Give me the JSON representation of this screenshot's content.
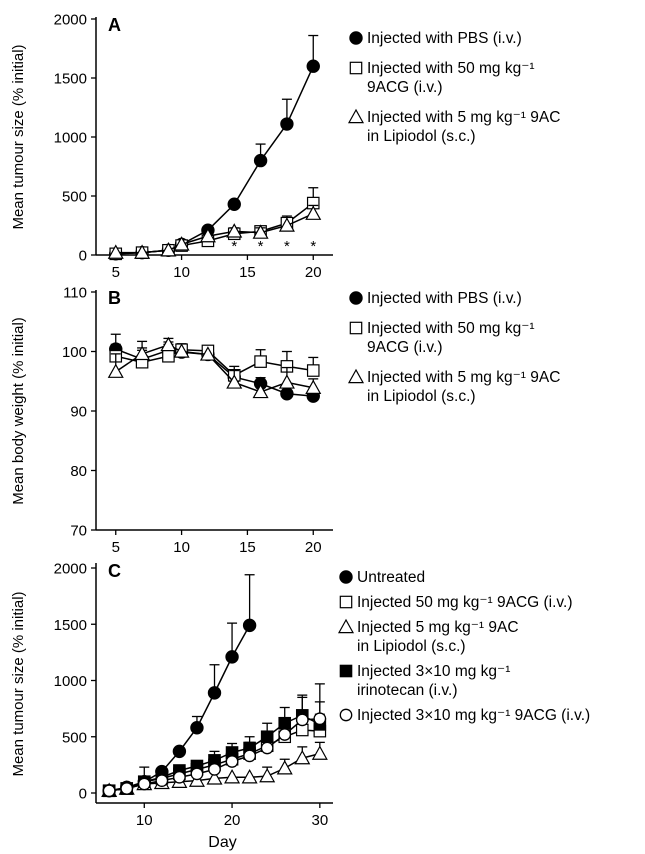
{
  "chart_data": [
    {
      "type": "line",
      "panel_label": "A",
      "ylabel": "Mean tumour size (% initial)",
      "xlabel": "",
      "xlim": [
        3.5,
        21.5
      ],
      "ylim": [
        0,
        2000
      ],
      "xticks": [
        5,
        10,
        15,
        20
      ],
      "yticks": [
        0,
        500,
        1000,
        1500,
        2000
      ],
      "legend_position": "right",
      "series": [
        {
          "name": "Injected with PBS (i.v.)",
          "marker": "filled-circle",
          "x": [
            5,
            7,
            9,
            10,
            12,
            14,
            16,
            18,
            20
          ],
          "y": [
            10,
            20,
            40,
            90,
            210,
            430,
            800,
            1110,
            1600
          ],
          "err": [
            0,
            0,
            0,
            0,
            0,
            0,
            140,
            210,
            260
          ]
        },
        {
          "name": "Injected with 50 mg kg⁻¹ 9ACG (i.v.)",
          "marker": "open-square",
          "x": [
            5,
            7,
            9,
            10,
            12,
            14,
            16,
            18,
            20
          ],
          "y": [
            10,
            20,
            40,
            80,
            120,
            180,
            200,
            270,
            440
          ],
          "err": [
            0,
            0,
            0,
            0,
            0,
            0,
            0,
            0,
            130
          ]
        },
        {
          "name": "Injected with 5 mg kg⁻¹ 9AC in Lipiodol (s.c.)",
          "marker": "open-triangle",
          "x": [
            5,
            7,
            9,
            10,
            12,
            14,
            16,
            18,
            20
          ],
          "y": [
            20,
            20,
            40,
            90,
            160,
            200,
            190,
            250,
            350
          ],
          "err": [
            0,
            0,
            0,
            0,
            0,
            30,
            40,
            80,
            70
          ]
        }
      ],
      "annotations": [
        {
          "text": "*",
          "x": 14,
          "y": -95
        },
        {
          "text": "*",
          "x": 16,
          "y": -95
        },
        {
          "text": "*",
          "x": 18,
          "y": -95
        },
        {
          "text": "*",
          "x": 20,
          "y": -95
        }
      ]
    },
    {
      "type": "line",
      "panel_label": "B",
      "ylabel": "Mean body weight (% initial)",
      "xlabel": "",
      "xlim": [
        3.5,
        21.5
      ],
      "ylim": [
        70,
        110
      ],
      "xticks": [
        5,
        10,
        15,
        20
      ],
      "yticks": [
        70,
        80,
        90,
        100,
        110
      ],
      "legend_position": "right",
      "series": [
        {
          "name": "Injected with PBS (i.v.)",
          "marker": "filled-circle",
          "x": [
            5,
            7,
            9,
            10,
            12,
            14,
            16,
            18,
            20
          ],
          "y": [
            100.4,
            98.7,
            100.2,
            99.9,
            99.5,
            95.7,
            94.6,
            92.9,
            92.5
          ],
          "err": [
            2.5,
            1.5,
            1.0,
            0,
            0,
            1.0,
            1.0,
            1.2,
            0
          ]
        },
        {
          "name": "Injected with 50 mg kg⁻¹ 9ACG (i.v.)",
          "marker": "open-square",
          "x": [
            5,
            7,
            9,
            10,
            12,
            14,
            16,
            18,
            20
          ],
          "y": [
            99.2,
            98.2,
            99.2,
            100.3,
            100.1,
            96.0,
            98.3,
            97.5,
            96.8
          ],
          "err": [
            2.0,
            3.5,
            3.0,
            1.0,
            0,
            1.5,
            2.0,
            2.5,
            2.2
          ]
        },
        {
          "name": "Injected with 5 mg kg⁻¹ 9AC in Lipiodol (s.c.)",
          "marker": "open-triangle",
          "x": [
            5,
            7,
            9,
            10,
            12,
            14,
            16,
            18,
            20
          ],
          "y": [
            96.6,
            99.6,
            101.1,
            100.0,
            99.5,
            94.8,
            93.2,
            94.8,
            93.9
          ],
          "err": [
            3.0,
            1.0,
            0.5,
            0,
            0,
            2.0,
            1.5,
            2.5,
            1.5
          ]
        }
      ]
    },
    {
      "type": "line",
      "panel_label": "C",
      "ylabel": "Mean tumour size (% initial)",
      "xlabel": "Day",
      "xlim": [
        4.5,
        31.5
      ],
      "ylim": [
        -120,
        2000
      ],
      "xticks": [
        10,
        20,
        30
      ],
      "yticks": [
        0,
        500,
        1000,
        1500,
        2000
      ],
      "legend_position": "right",
      "series": [
        {
          "name": "Untreated",
          "marker": "filled-circle",
          "x": [
            6,
            8,
            10,
            12,
            14,
            16,
            18,
            20,
            22
          ],
          "y": [
            20,
            50,
            100,
            190,
            370,
            580,
            890,
            1210,
            1490
          ],
          "err": [
            0,
            0,
            130,
            0,
            0,
            100,
            250,
            300,
            450
          ]
        },
        {
          "name": "Injected 50 mg kg⁻¹ 9ACG (i.v.)",
          "marker": "open-square",
          "x": [
            6,
            8,
            10,
            12,
            14,
            16,
            18,
            20,
            22,
            24,
            26,
            28,
            30
          ],
          "y": [
            20,
            40,
            100,
            130,
            170,
            210,
            250,
            300,
            350,
            420,
            500,
            560,
            550
          ],
          "err": [
            0,
            0,
            0,
            0,
            0,
            0,
            80,
            90,
            100,
            100,
            120,
            130,
            150
          ]
        },
        {
          "name": "Injected 5 mg kg⁻¹ 9AC in Lipiodol (s.c.)",
          "marker": "open-triangle",
          "x": [
            6,
            8,
            10,
            12,
            14,
            16,
            18,
            20,
            22,
            24,
            26,
            28,
            30
          ],
          "y": [
            20,
            40,
            80,
            90,
            100,
            110,
            130,
            140,
            140,
            150,
            220,
            310,
            350
          ],
          "err": [
            0,
            0,
            0,
            0,
            0,
            0,
            0,
            0,
            0,
            80,
            80,
            100,
            100
          ]
        },
        {
          "name": "Injected 3×10 mg kg⁻¹ irinotecan (i.v.)",
          "marker": "filled-square",
          "x": [
            6,
            8,
            10,
            12,
            14,
            16,
            18,
            20,
            22,
            24,
            26,
            28,
            30
          ],
          "y": [
            20,
            40,
            100,
            140,
            200,
            240,
            290,
            360,
            400,
            500,
            620,
            690,
            610
          ],
          "err": [
            0,
            0,
            0,
            0,
            0,
            0,
            80,
            80,
            100,
            120,
            140,
            180,
            200
          ]
        },
        {
          "name": "Injected 3×10 mg kg⁻¹ 9ACG (i.v.)",
          "marker": "open-circle",
          "x": [
            6,
            8,
            10,
            12,
            14,
            16,
            18,
            20,
            22,
            24,
            26,
            28,
            30
          ],
          "y": [
            20,
            40,
            80,
            110,
            140,
            170,
            210,
            280,
            330,
            400,
            520,
            650,
            660
          ],
          "err": [
            0,
            0,
            0,
            0,
            0,
            0,
            0,
            0,
            80,
            100,
            150,
            200,
            310
          ]
        }
      ]
    }
  ]
}
